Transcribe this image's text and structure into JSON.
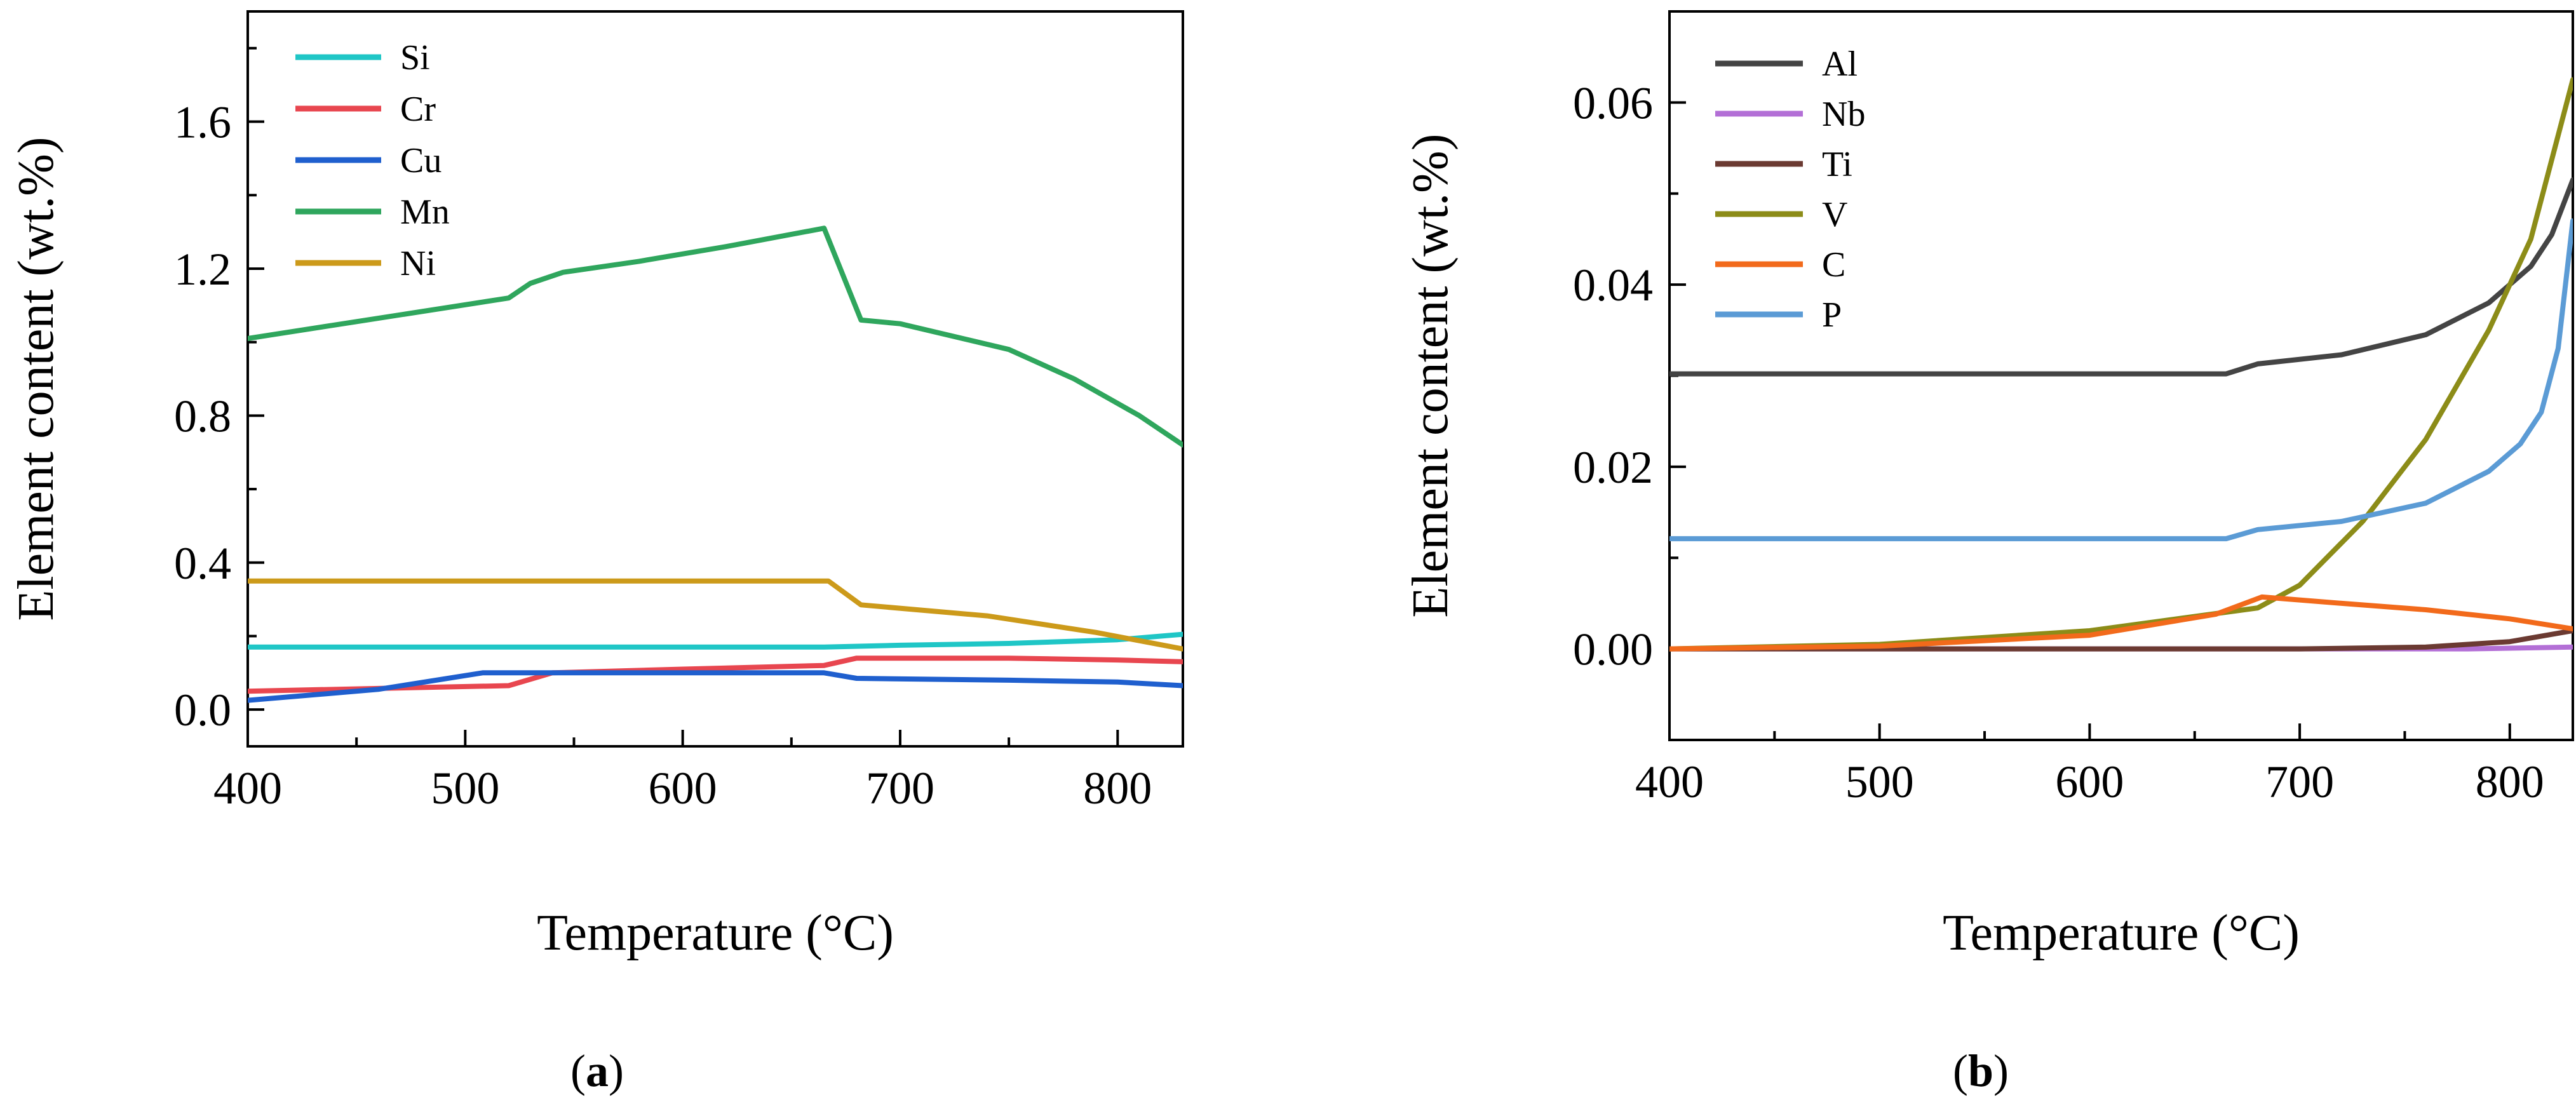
{
  "chart_data": [
    {
      "panel": "a",
      "type": "line",
      "xlabel": "Temperature (°C)",
      "ylabel": "Element content (wt.%)",
      "xlim": [
        400,
        830
      ],
      "ylim": [
        -0.1,
        1.9
      ],
      "xticks": [
        400,
        500,
        600,
        700,
        800
      ],
      "yticks": [
        0.0,
        0.4,
        0.8,
        1.2,
        1.6
      ],
      "ytick_labels": [
        "0.0",
        "0.4",
        "0.8",
        "1.2",
        "1.6"
      ],
      "legend_position": "top-left",
      "series": [
        {
          "name": "Si",
          "color": "#1fc6c6",
          "x": [
            400,
            500,
            600,
            665,
            700,
            750,
            800,
            830
          ],
          "y": [
            0.17,
            0.17,
            0.17,
            0.17,
            0.175,
            0.18,
            0.19,
            0.205
          ]
        },
        {
          "name": "Cr",
          "color": "#e8464f",
          "x": [
            400,
            520,
            540,
            600,
            665,
            680,
            750,
            800,
            830
          ],
          "y": [
            0.05,
            0.065,
            0.1,
            0.11,
            0.12,
            0.14,
            0.14,
            0.135,
            0.13
          ]
        },
        {
          "name": "Cu",
          "color": "#1f5fce",
          "x": [
            400,
            460,
            508,
            600,
            665,
            680,
            750,
            800,
            830
          ],
          "y": [
            0.025,
            0.055,
            0.1,
            0.1,
            0.1,
            0.085,
            0.08,
            0.075,
            0.065
          ]
        },
        {
          "name": "Mn",
          "color": "#2fa65d",
          "x": [
            400,
            520,
            530,
            545,
            580,
            620,
            665,
            682,
            700,
            750,
            780,
            810,
            830
          ],
          "y": [
            1.01,
            1.12,
            1.16,
            1.19,
            1.22,
            1.26,
            1.31,
            1.06,
            1.05,
            0.98,
            0.9,
            0.8,
            0.72
          ]
        },
        {
          "name": "Ni",
          "color": "#cc9a1a",
          "x": [
            400,
            500,
            600,
            667,
            682,
            740,
            790,
            830
          ],
          "y": [
            0.35,
            0.35,
            0.35,
            0.35,
            0.285,
            0.255,
            0.21,
            0.165
          ]
        }
      ]
    },
    {
      "panel": "b",
      "type": "line",
      "xlabel": "Temperature (°C)",
      "ylabel": "Element content (wt.%)",
      "xlim": [
        400,
        830
      ],
      "ylim": [
        -0.01,
        0.07
      ],
      "xticks": [
        400,
        500,
        600,
        700,
        800
      ],
      "yticks": [
        0.0,
        0.02,
        0.04,
        0.06
      ],
      "ytick_labels": [
        "0.00",
        "0.02",
        "0.04",
        "0.06"
      ],
      "legend_position": "top-left",
      "series": [
        {
          "name": "Al",
          "color": "#444444",
          "x": [
            400,
            500,
            600,
            665,
            680,
            720,
            760,
            790,
            810,
            820,
            830
          ],
          "y": [
            0.0302,
            0.0302,
            0.0302,
            0.0302,
            0.0313,
            0.0323,
            0.0345,
            0.038,
            0.042,
            0.0455,
            0.0515
          ]
        },
        {
          "name": "Nb",
          "color": "#b36fd6",
          "x": [
            400,
            600,
            780,
            830
          ],
          "y": [
            0.0,
            0.0,
            0.0,
            0.0002
          ]
        },
        {
          "name": "Ti",
          "color": "#6b3a32",
          "x": [
            400,
            700,
            760,
            800,
            830
          ],
          "y": [
            0.0,
            0.0,
            0.0002,
            0.0008,
            0.002
          ]
        },
        {
          "name": "V",
          "color": "#8c8c18",
          "x": [
            400,
            500,
            600,
            680,
            700,
            730,
            760,
            790,
            810,
            830
          ],
          "y": [
            0.0,
            0.0005,
            0.002,
            0.0045,
            0.007,
            0.014,
            0.023,
            0.035,
            0.045,
            0.0625
          ]
        },
        {
          "name": "C",
          "color": "#f26a1b",
          "x": [
            400,
            500,
            600,
            660,
            682,
            720,
            760,
            800,
            830
          ],
          "y": [
            0.0,
            0.0003,
            0.0015,
            0.0038,
            0.0057,
            0.005,
            0.0043,
            0.0033,
            0.0022
          ]
        },
        {
          "name": "P",
          "color": "#5b9bd5",
          "x": [
            400,
            500,
            600,
            665,
            680,
            720,
            760,
            790,
            805,
            815,
            823,
            830
          ],
          "y": [
            0.0121,
            0.0121,
            0.0121,
            0.0121,
            0.0131,
            0.014,
            0.016,
            0.0195,
            0.0225,
            0.026,
            0.033,
            0.047
          ]
        }
      ]
    }
  ],
  "panel_labels": {
    "a": {
      "open": "(",
      "letter": "a",
      "close": ")"
    },
    "b": {
      "open": "(",
      "letter": "b",
      "close": ")"
    }
  }
}
